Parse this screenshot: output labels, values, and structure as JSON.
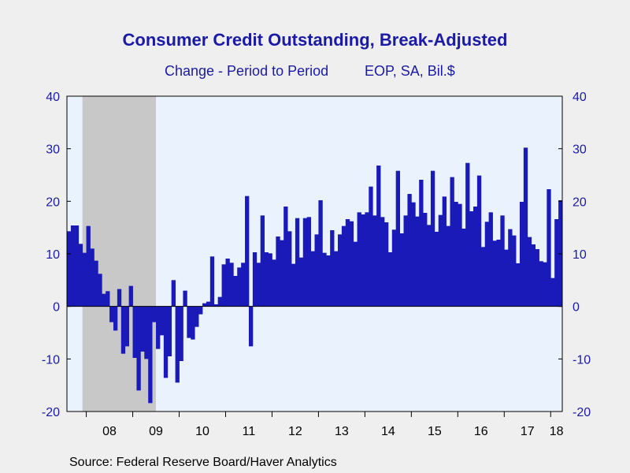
{
  "title": "Consumer Credit Outstanding, Break-Adjusted",
  "subtitle_left": "Change - Period to Period",
  "subtitle_right": "EOP, SA, Bil.$",
  "source": "Source:  Federal Reserve Board/Haver Analytics",
  "colors": {
    "bar": "#1a1ab8",
    "plot_bg": "#eaf2fd",
    "recession": "#c8c8c8",
    "axis_text": "#1a1aa6",
    "page_bg": "#efefef"
  },
  "chart_data": {
    "type": "bar",
    "frequency": "monthly",
    "title": "Consumer Credit Outstanding, Break-Adjusted",
    "ylim": [
      -20,
      40
    ],
    "y_ticks": [
      40,
      30,
      20,
      10,
      0,
      -10,
      -20
    ],
    "x_tick_labels": [
      "08",
      "09",
      "10",
      "11",
      "12",
      "13",
      "14",
      "15",
      "16",
      "17",
      "18"
    ],
    "grid": false,
    "legend": "none",
    "recession_shading": {
      "start": "2007-12",
      "end": "2009-06"
    },
    "series": [
      {
        "start": "2007-08",
        "values": [
          14.3,
          15.4,
          15.4,
          11.9,
          10.2,
          15.3,
          11.0,
          8.7,
          6.2,
          2.4,
          2.9,
          -3.0,
          -4.6,
          3.3,
          -9.0,
          -7.6,
          3.9,
          -9.8,
          -16.0,
          -8.6,
          -10.0,
          -18.4,
          -3.0,
          -8.1,
          -5.5,
          -13.6,
          -9.5,
          5.0,
          -14.5,
          -10.4,
          3.0,
          -6.0,
          -6.3,
          -3.9,
          -1.5,
          0.6,
          0.9,
          9.5,
          0.4,
          1.8,
          8.0,
          9.1,
          8.3,
          5.8,
          7.4,
          8.3,
          21.0,
          -7.6,
          10.3,
          8.3,
          17.3,
          10.3,
          10.1,
          8.9,
          13.3,
          12.6,
          19.0,
          14.3,
          8.1,
          16.8,
          9.3,
          16.8,
          17.0,
          10.5,
          13.7,
          20.2,
          10.2,
          9.7,
          14.5,
          10.5,
          13.7,
          15.3,
          16.6,
          16.2,
          12.3,
          17.9,
          17.5,
          17.9,
          22.8,
          17.3,
          26.8,
          17.0,
          16.0,
          10.3,
          14.6,
          25.8,
          13.9,
          17.3,
          21.4,
          19.8,
          17.1,
          24.1,
          17.8,
          15.5,
          25.8,
          14.2,
          17.4,
          20.9,
          15.3,
          24.6,
          19.9,
          19.5,
          14.8,
          27.3,
          18.1,
          19.0,
          24.9,
          11.3,
          16.1,
          17.9,
          12.5,
          12.7,
          17.3,
          10.8,
          14.7,
          13.5,
          8.2,
          19.9,
          30.2,
          13.2,
          11.8,
          10.9,
          8.6,
          8.4,
          22.3,
          5.4,
          16.6,
          20.2
        ]
      }
    ]
  }
}
